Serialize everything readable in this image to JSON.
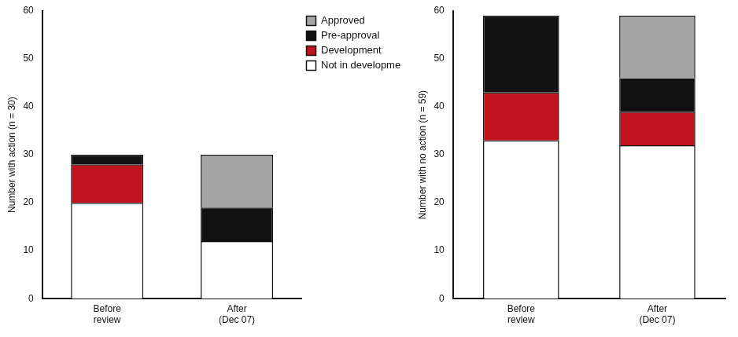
{
  "chart_data": [
    {
      "type": "bar",
      "stacked": true,
      "grid": false,
      "legend": "right",
      "y_label": "Number with action (n = 30)",
      "categories": [
        "Before review",
        "After (Dec 07)"
      ],
      "ylim": [
        0,
        60
      ],
      "yticks": [
        0,
        10,
        20,
        30,
        40,
        50,
        60
      ],
      "series": [
        {
          "name": "Not in development",
          "color": "#ffffff",
          "values": [
            20,
            12
          ]
        },
        {
          "name": "Development",
          "color": "#c0131f",
          "values": [
            8,
            0
          ]
        },
        {
          "name": "Pre-approval",
          "color": "#111111",
          "values": [
            2,
            7
          ]
        },
        {
          "name": "Approved",
          "color": "#a6a6a6",
          "values": [
            0,
            11
          ]
        }
      ]
    },
    {
      "type": "bar",
      "stacked": true,
      "grid": false,
      "y_label": "Number with no action (n = 59)",
      "categories": [
        "Before review",
        "After (Dec 07)"
      ],
      "ylim": [
        0,
        60
      ],
      "yticks": [
        0,
        10,
        20,
        30,
        40,
        50,
        60
      ],
      "series": [
        {
          "name": "Not in development",
          "color": "#ffffff",
          "values": [
            33,
            32
          ]
        },
        {
          "name": "Development",
          "color": "#c0131f",
          "values": [
            10,
            7
          ]
        },
        {
          "name": "Pre-approval",
          "color": "#111111",
          "values": [
            16,
            7
          ]
        },
        {
          "name": "Approved",
          "color": "#a6a6a6",
          "values": [
            0,
            13
          ]
        }
      ]
    }
  ]
}
